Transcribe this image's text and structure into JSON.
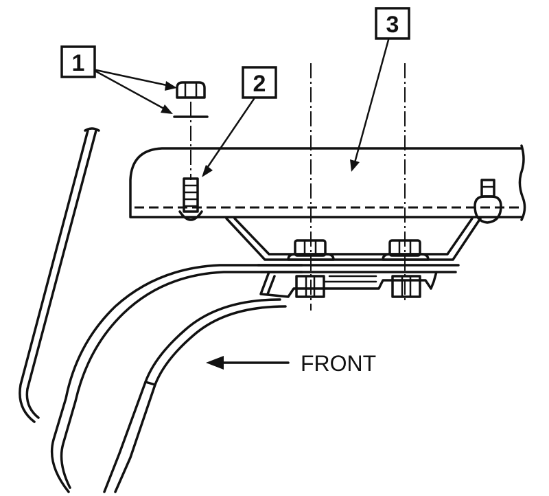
{
  "callouts": [
    {
      "id": "1",
      "label": "1"
    },
    {
      "id": "2",
      "label": "2"
    },
    {
      "id": "3",
      "label": "3"
    }
  ],
  "direction_label": "FRONT"
}
